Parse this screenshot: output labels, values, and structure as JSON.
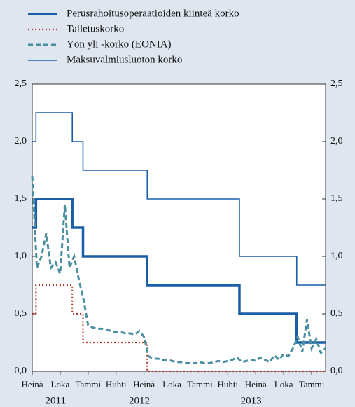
{
  "chart_data": {
    "type": "line",
    "x_unit": "months since Heinä 2011",
    "xlim": [
      0,
      31.5
    ],
    "xticks": [
      {
        "value": 0,
        "label": "Heinä"
      },
      {
        "value": 3,
        "label": "Loka"
      },
      {
        "value": 6,
        "label": "Tammi"
      },
      {
        "value": 9,
        "label": "Huhti"
      },
      {
        "value": 12,
        "label": "Heinä"
      },
      {
        "value": 15,
        "label": "Loka"
      },
      {
        "value": 18,
        "label": "Tammi"
      },
      {
        "value": 21,
        "label": "Huhti"
      },
      {
        "value": 24,
        "label": "Heinä"
      },
      {
        "value": 27,
        "label": "Loka"
      },
      {
        "value": 30,
        "label": "Tammi"
      }
    ],
    "year_ticks": [
      {
        "value": 2.5,
        "label": "2011"
      },
      {
        "value": 11.5,
        "label": "2012"
      },
      {
        "value": 23.5,
        "label": "2013"
      }
    ],
    "ylim": [
      0,
      2.5
    ],
    "yticks": [
      {
        "value": 0,
        "label": "0,0"
      },
      {
        "value": 0.5,
        "label": "0,5"
      },
      {
        "value": 1,
        "label": "1,0"
      },
      {
        "value": 1.5,
        "label": "1,5"
      },
      {
        "value": 2,
        "label": "2,0"
      },
      {
        "value": 2.5,
        "label": "2,5"
      }
    ],
    "y2lim": [
      0,
      2.5
    ],
    "y2ticks": [
      {
        "value": 0,
        "label": "0,0"
      },
      {
        "value": 0.5,
        "label": "0,5"
      },
      {
        "value": 1,
        "label": "1,0"
      },
      {
        "value": 1.5,
        "label": "1,5"
      },
      {
        "value": 2,
        "label": "2,0"
      },
      {
        "value": 2.5,
        "label": "2,5"
      }
    ],
    "grid": false,
    "series": [
      {
        "name": "Perusrahoitusoperaatioiden  kiinteä korko",
        "color": "#1a5ea8",
        "width": 3.5,
        "style": "solid",
        "x": [
          0,
          0.4,
          0.4,
          4.3,
          4.3,
          5.45,
          5.45,
          12.35,
          12.35,
          22.25,
          22.25,
          28.4,
          28.4,
          31.5
        ],
        "values": [
          1.25,
          1.25,
          1.5,
          1.5,
          1.25,
          1.25,
          1.0,
          1.0,
          0.75,
          0.75,
          0.5,
          0.5,
          0.25,
          0.25
        ]
      },
      {
        "name": "Talletuskorko",
        "color": "#b03a2e",
        "width": 2.2,
        "style": "dotted",
        "x": [
          0,
          0.4,
          0.4,
          4.3,
          4.3,
          5.45,
          5.45,
          12.35,
          12.35,
          31.5
        ],
        "values": [
          0.5,
          0.5,
          0.75,
          0.75,
          0.5,
          0.5,
          0.25,
          0.25,
          0,
          0
        ]
      },
      {
        "name": "Yön yli -korko (EONIA)",
        "color": "#4a8fa0",
        "width": 3,
        "style": "dashed",
        "x": [
          0,
          0.5,
          1,
          1.5,
          2,
          2.5,
          3,
          3.5,
          4,
          4.5,
          5,
          5.5,
          6,
          6.5,
          7,
          7.5,
          8,
          8.5,
          9,
          9.5,
          10,
          10.5,
          11,
          11.5,
          12,
          12.5,
          13,
          13.5,
          14,
          14.5,
          15,
          15.5,
          16,
          16.5,
          17,
          17.5,
          18,
          18.5,
          19,
          19.5,
          20,
          20.5,
          21,
          21.5,
          22,
          22.5,
          23,
          23.5,
          24,
          24.5,
          25,
          25.5,
          26,
          26.5,
          27,
          27.5,
          28,
          28.5,
          29,
          29.5,
          30,
          30.5,
          31,
          31.5
        ],
        "values": [
          1.7,
          0.9,
          1.0,
          1.2,
          0.9,
          0.95,
          0.85,
          1.45,
          0.9,
          1.0,
          0.8,
          0.63,
          0.4,
          0.38,
          0.37,
          0.37,
          0.36,
          0.35,
          0.34,
          0.34,
          0.33,
          0.33,
          0.32,
          0.35,
          0.3,
          0.13,
          0.11,
          0.11,
          0.1,
          0.1,
          0.09,
          0.08,
          0.08,
          0.07,
          0.07,
          0.07,
          0.08,
          0.07,
          0.07,
          0.08,
          0.09,
          0.08,
          0.09,
          0.1,
          0.12,
          0.08,
          0.09,
          0.1,
          0.09,
          0.12,
          0.1,
          0.08,
          0.14,
          0.1,
          0.15,
          0.13,
          0.2,
          0.3,
          0.17,
          0.45,
          0.2,
          0.28,
          0.16,
          0.2
        ]
      },
      {
        "name": "Maksuvalmiusluoton korko",
        "color": "#1a5ea8",
        "width": 1.6,
        "style": "solid",
        "x": [
          0,
          0.4,
          0.4,
          4.3,
          4.3,
          5.45,
          5.45,
          12.35,
          12.35,
          22.25,
          22.25,
          28.4,
          28.4,
          31.5
        ],
        "values": [
          2.0,
          2.0,
          2.25,
          2.25,
          2.0,
          2.0,
          1.75,
          1.75,
          1.5,
          1.5,
          1.0,
          1.0,
          0.75,
          0.75
        ]
      }
    ]
  }
}
